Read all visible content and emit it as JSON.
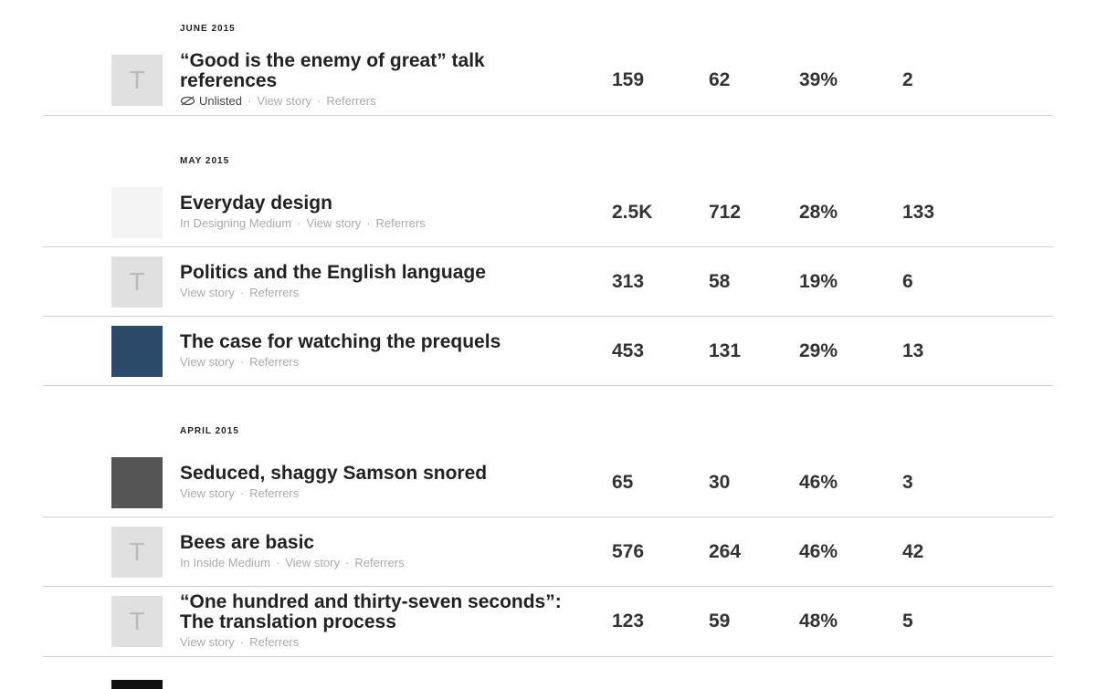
{
  "sections": [
    {
      "month": "JUNE 2015",
      "rows": [
        {
          "thumb": "T",
          "title": "“Good is the enemy of great” talk references",
          "status": "Unlisted",
          "links": [
            "View story",
            "Referrers"
          ],
          "stats": [
            "159",
            "62",
            "39%",
            "2"
          ]
        }
      ]
    },
    {
      "month": "MAY 2015",
      "rows": [
        {
          "title": "Everyday design",
          "links": [
            "In Designing Medium",
            "View story",
            "Referrers"
          ],
          "stats": [
            "2.5K",
            "712",
            "28%",
            "133"
          ]
        },
        {
          "thumb": "T",
          "title": "Politics and the English language",
          "links": [
            "View story",
            "Referrers"
          ],
          "stats": [
            "313",
            "58",
            "19%",
            "6"
          ]
        },
        {
          "title": "The case for watching the prequels",
          "links": [
            "View story",
            "Referrers"
          ],
          "stats": [
            "453",
            "131",
            "29%",
            "13"
          ]
        }
      ]
    },
    {
      "month": "APRIL 2015",
      "rows": [
        {
          "title": "Seduced, shaggy Samson snored",
          "links": [
            "View story",
            "Referrers"
          ],
          "stats": [
            "65",
            "30",
            "46%",
            "3"
          ]
        },
        {
          "thumb": "T",
          "title": "Bees are basic",
          "links": [
            "In Inside Medium",
            "View story",
            "Referrers"
          ],
          "stats": [
            "576",
            "264",
            "46%",
            "42"
          ]
        },
        {
          "thumb": "T",
          "title": "“One hundred and thirty-seven seconds”: The translation process",
          "links": [
            "View story",
            "Referrers"
          ],
          "stats": [
            "123",
            "59",
            "48%",
            "5"
          ]
        }
      ]
    }
  ]
}
